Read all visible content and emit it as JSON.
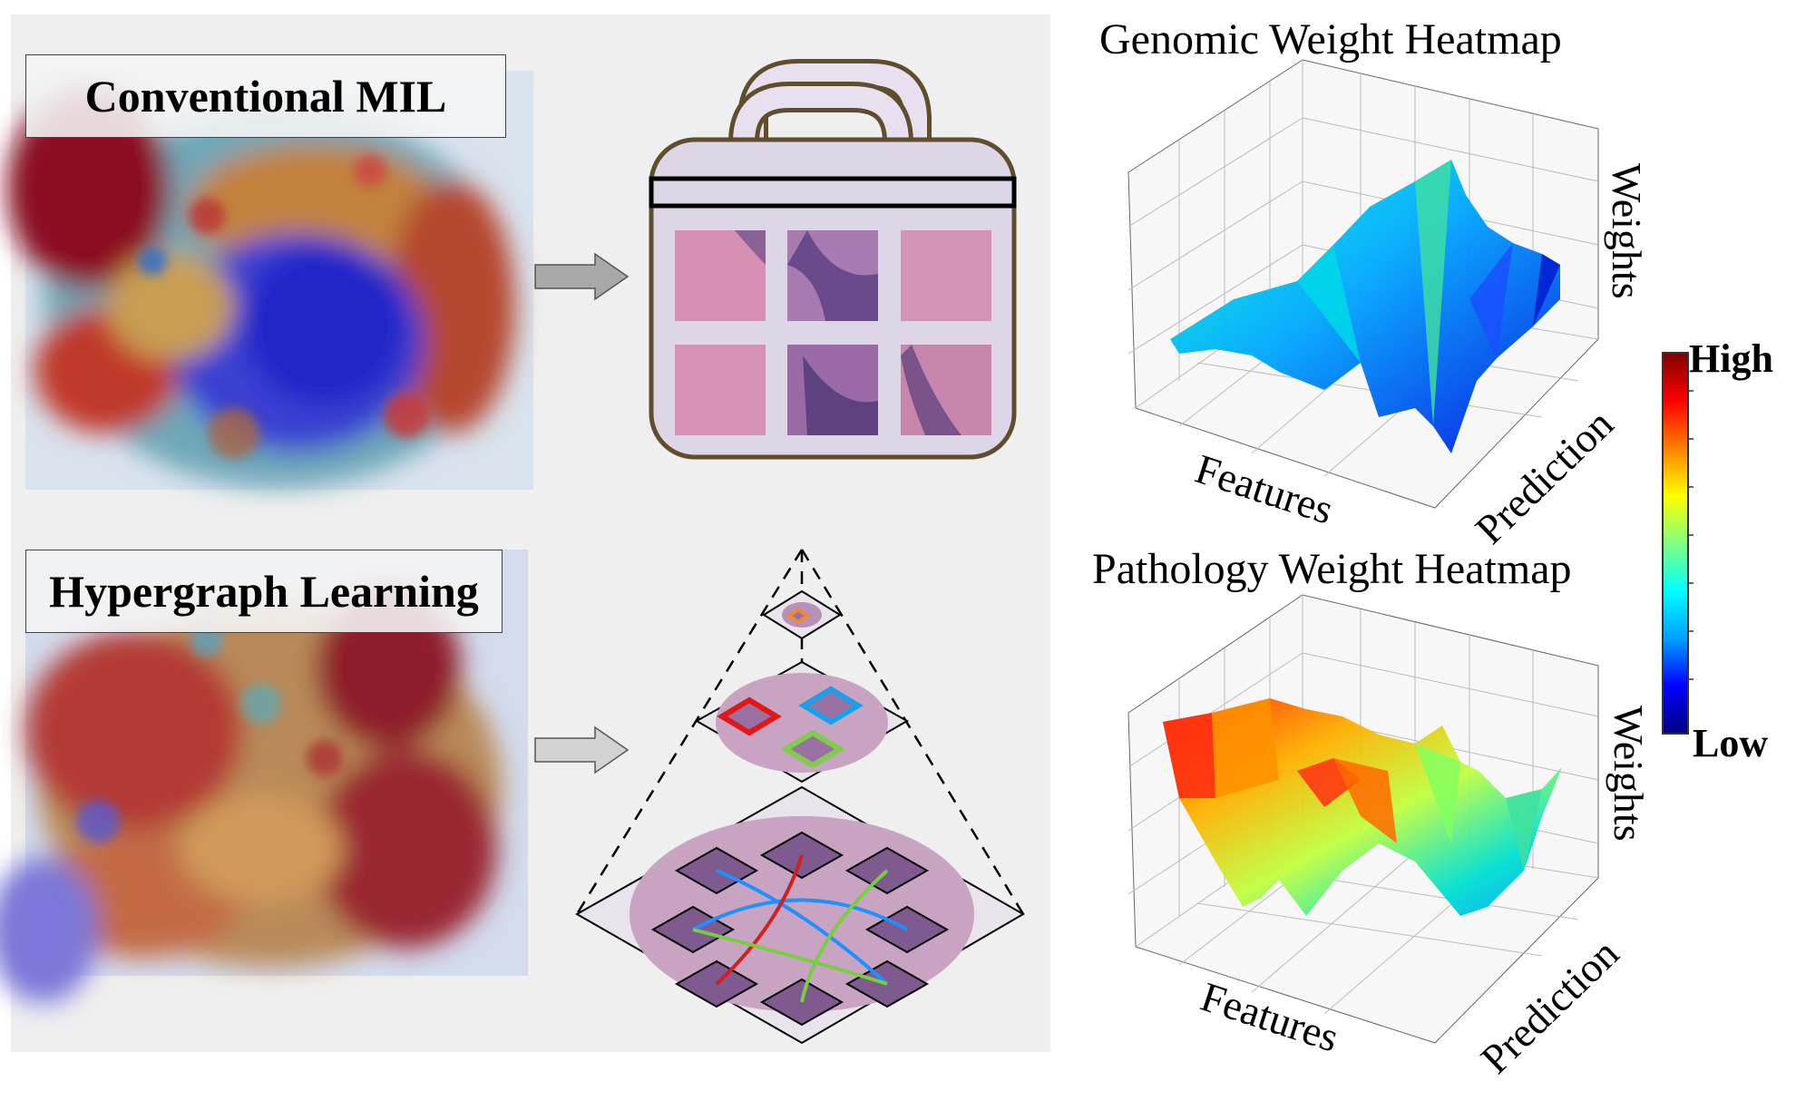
{
  "left_panel": {
    "conventional_label": "Conventional MIL",
    "hypergraph_label": "Hypergraph Learning"
  },
  "genomic": {
    "title": "Genomic Weight Heatmap",
    "x_label": "Features",
    "y_label": "Prediction",
    "z_label": "Weights"
  },
  "pathology": {
    "title": "Pathology Weight Heatmap",
    "x_label": "Features",
    "y_label": "Prediction",
    "z_label": "Weights"
  },
  "colorbar": {
    "high_label": "High",
    "low_label": "Low",
    "colormap": [
      "#000080",
      "#0000ff",
      "#00a0ff",
      "#00ffff",
      "#80ff80",
      "#ffff00",
      "#ff8000",
      "#ff0000",
      "#800000"
    ]
  }
}
